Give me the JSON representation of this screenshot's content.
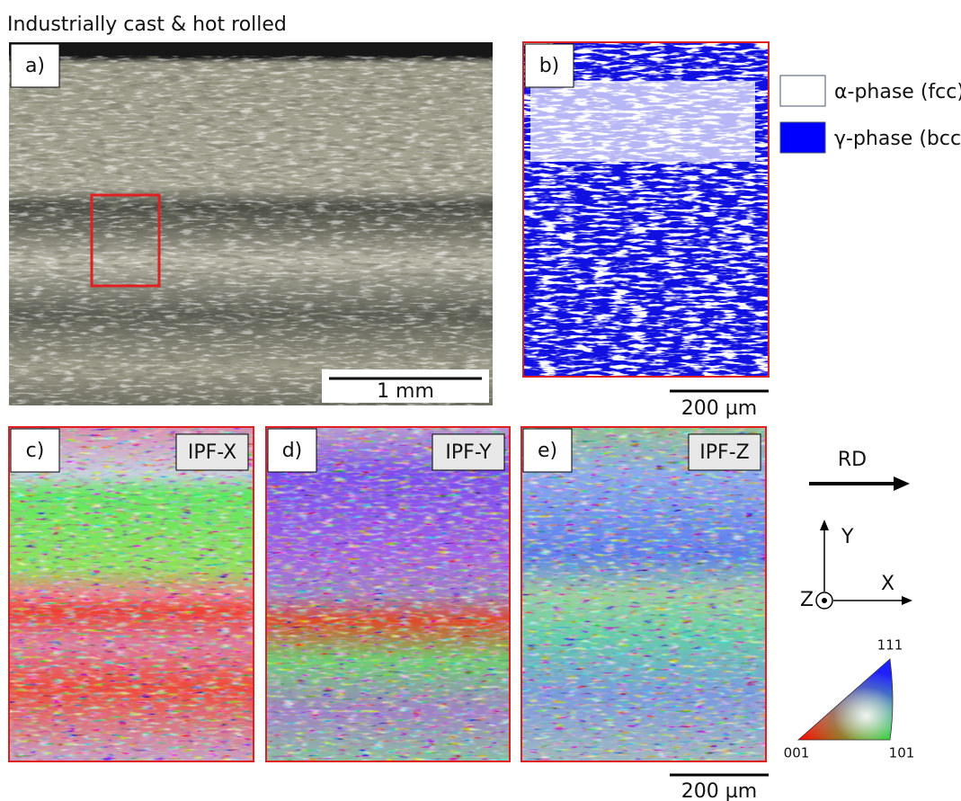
{
  "title": "Industrially cast & hot rolled",
  "panels": [
    {
      "label": "a)",
      "scale_bar": "1 mm"
    },
    {
      "label": "b)",
      "scale_bar": "200 µm"
    },
    {
      "label": "c)",
      "tag": "IPF-X"
    },
    {
      "label": "d)",
      "tag": "IPF-Y"
    },
    {
      "label": "e)",
      "tag": "IPF-Z",
      "scale_bar": "200 µm"
    }
  ],
  "legend": [
    {
      "label": "α-phase (fcc)"
    },
    {
      "label": "γ-phase (bcc)"
    }
  ],
  "direction": "RD",
  "axes": {
    "x": "X",
    "y": "Y",
    "z": "Z"
  },
  "ipf_triangle": {
    "top": "111",
    "left": "001",
    "right": "101"
  }
}
